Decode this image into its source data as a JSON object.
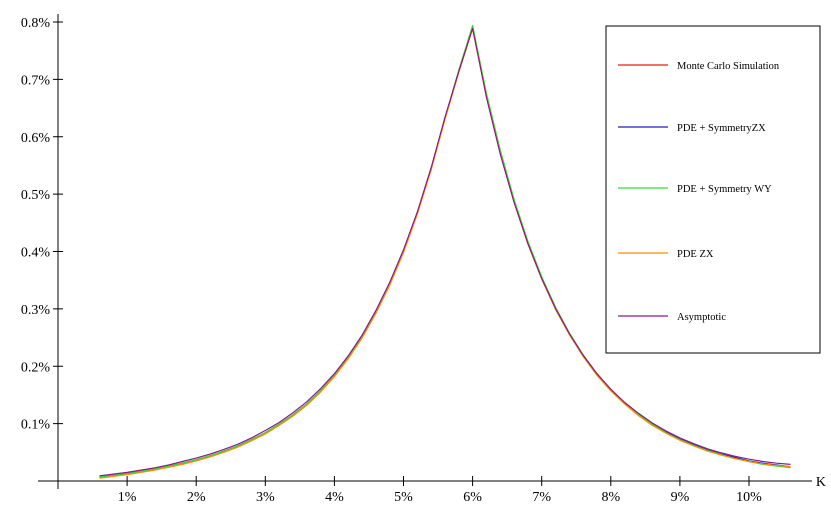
{
  "chart_data": {
    "type": "line",
    "title": "",
    "xlabel": "K",
    "ylabel": "",
    "xlim": [
      0.0,
      0.11
    ],
    "ylim": [
      0.0,
      0.008
    ],
    "x_ticks": [
      0.01,
      0.02,
      0.03,
      0.04,
      0.05,
      0.06,
      0.07,
      0.08,
      0.09,
      0.1
    ],
    "x_tick_labels": [
      "1%",
      "2%",
      "3%",
      "4%",
      "5%",
      "6%",
      "7%",
      "8%",
      "9%",
      "10%"
    ],
    "y_ticks": [
      0.001,
      0.002,
      0.003,
      0.004,
      0.005,
      0.006,
      0.007,
      0.008
    ],
    "y_tick_labels": [
      "0.1%",
      "0.2%",
      "0.3%",
      "0.4%",
      "0.5%",
      "0.6%",
      "0.7%",
      "0.8%"
    ],
    "grid": false,
    "legend_position": "top-right",
    "x": [
      0.006,
      0.008,
      0.01,
      0.012,
      0.014,
      0.016,
      0.018,
      0.02,
      0.022,
      0.024,
      0.026,
      0.028,
      0.03,
      0.032,
      0.034,
      0.036,
      0.038,
      0.04,
      0.042,
      0.044,
      0.046,
      0.048,
      0.05,
      0.052,
      0.054,
      0.056,
      0.058,
      0.06,
      0.062,
      0.064,
      0.066,
      0.068,
      0.07,
      0.072,
      0.074,
      0.076,
      0.078,
      0.08,
      0.082,
      0.084,
      0.086,
      0.088,
      0.09,
      0.092,
      0.094,
      0.096,
      0.098,
      0.1,
      0.102,
      0.104,
      0.106
    ],
    "series": [
      {
        "name": "Monte Carlo Simulation",
        "color": "#e41a1c",
        "values": [
          7e-05,
          0.0001,
          0.00013,
          0.00017,
          0.00021,
          0.00026,
          0.00031,
          0.00037,
          0.00044,
          0.00052,
          0.00061,
          0.00072,
          0.00084,
          0.00099,
          0.00115,
          0.00134,
          0.00157,
          0.00184,
          0.00215,
          0.00251,
          0.00294,
          0.00343,
          0.004,
          0.00467,
          0.00544,
          0.00632,
          0.00714,
          0.0079,
          0.00671,
          0.00572,
          0.00487,
          0.00414,
          0.00353,
          0.003,
          0.00256,
          0.00218,
          0.00185,
          0.00158,
          0.00135,
          0.00115,
          0.00098,
          0.00084,
          0.00072,
          0.00062,
          0.00053,
          0.00046,
          0.0004,
          0.00034,
          0.0003,
          0.00027,
          0.00024
        ]
      },
      {
        "name": "PDE + SymmetryZX",
        "color": "#1f1fbf",
        "values": [
          7e-05,
          0.0001,
          0.00013,
          0.00017,
          0.00021,
          0.00026,
          0.00031,
          0.00037,
          0.00044,
          0.00052,
          0.00061,
          0.00072,
          0.00084,
          0.00099,
          0.00115,
          0.00134,
          0.00157,
          0.00184,
          0.00215,
          0.00251,
          0.00294,
          0.00343,
          0.004,
          0.00467,
          0.00544,
          0.00632,
          0.00714,
          0.00791,
          0.00672,
          0.00573,
          0.00488,
          0.00415,
          0.00354,
          0.00301,
          0.00257,
          0.00219,
          0.00186,
          0.00159,
          0.00136,
          0.00116,
          0.00099,
          0.00085,
          0.00073,
          0.00063,
          0.00054,
          0.00047,
          0.00041,
          0.00035,
          0.00031,
          0.00028,
          0.00025
        ]
      },
      {
        "name": "PDE + Symmetry WY",
        "color": "#33dd33",
        "values": [
          7e-05,
          0.0001,
          0.00013,
          0.00017,
          0.00021,
          0.00026,
          0.00031,
          0.00037,
          0.00044,
          0.00052,
          0.00061,
          0.00072,
          0.00084,
          0.00099,
          0.00115,
          0.00134,
          0.00157,
          0.00184,
          0.00215,
          0.00251,
          0.00294,
          0.00343,
          0.004,
          0.00467,
          0.00544,
          0.00632,
          0.00716,
          0.00794,
          0.00676,
          0.00577,
          0.00491,
          0.00418,
          0.00356,
          0.00303,
          0.00258,
          0.0022,
          0.00187,
          0.00159,
          0.00136,
          0.00116,
          0.00099,
          0.00084,
          0.00072,
          0.00062,
          0.00053,
          0.00046,
          0.00039,
          0.00034,
          0.00029,
          0.00026,
          0.00023
        ]
      },
      {
        "name": "PDE ZX",
        "color": "#ff8c00",
        "values": [
          5e-05,
          8e-05,
          0.00011,
          0.00015,
          0.00019,
          0.00024,
          0.00029,
          0.00035,
          0.00042,
          0.0005,
          0.00059,
          0.0007,
          0.00082,
          0.00097,
          0.00113,
          0.00132,
          0.00155,
          0.00182,
          0.00213,
          0.00249,
          0.00292,
          0.00341,
          0.00398,
          0.00465,
          0.00542,
          0.0063,
          0.00712,
          0.00788,
          0.0067,
          0.00571,
          0.00486,
          0.00413,
          0.00352,
          0.00299,
          0.00255,
          0.00217,
          0.00184,
          0.00157,
          0.00134,
          0.00114,
          0.00097,
          0.00083,
          0.00071,
          0.00061,
          0.00052,
          0.00045,
          0.00039,
          0.00034,
          0.0003,
          0.00027,
          0.00025
        ]
      },
      {
        "name": "Asymptotic",
        "color": "#8b1a8b",
        "values": [
          9e-05,
          0.00012,
          0.00015,
          0.00019,
          0.00023,
          0.00028,
          0.00034,
          0.0004,
          0.00047,
          0.00055,
          0.00064,
          0.00075,
          0.00088,
          0.00102,
          0.00119,
          0.00138,
          0.00161,
          0.00187,
          0.00218,
          0.00254,
          0.00297,
          0.00346,
          0.00403,
          0.00469,
          0.00546,
          0.00634,
          0.00714,
          0.00789,
          0.00669,
          0.0057,
          0.00486,
          0.00414,
          0.00353,
          0.00301,
          0.00257,
          0.00219,
          0.00187,
          0.0016,
          0.00137,
          0.00118,
          0.00101,
          0.00087,
          0.00075,
          0.00065,
          0.00056,
          0.00049,
          0.00043,
          0.00038,
          0.00034,
          0.00031,
          0.00029
        ]
      }
    ]
  }
}
